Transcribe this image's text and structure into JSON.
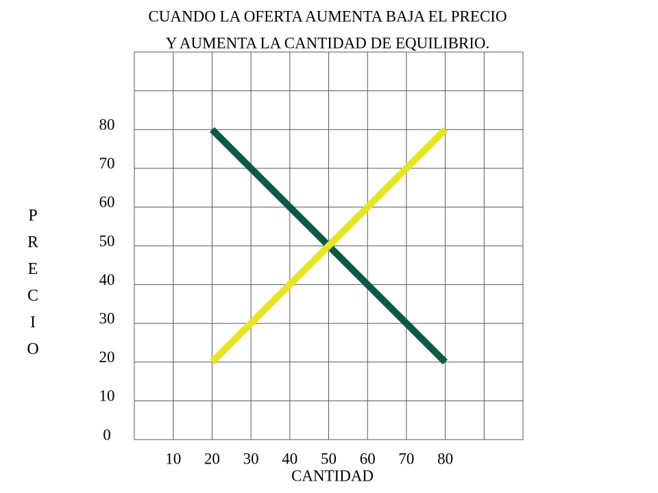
{
  "chart_data": {
    "type": "line",
    "title": [
      "CUANDO LA OFERTA AUMENTA BAJA EL PRECIO",
      "Y AUMENTA LA CANTIDAD DE EQUILIBRIO."
    ],
    "xlabel": "CANTIDAD",
    "ylabel": "PRECIO",
    "series": [
      {
        "color": "#0b5a48",
        "x": [
          20,
          80
        ],
        "values": [
          80,
          20
        ]
      },
      {
        "color": "#e6e61e",
        "x": [
          20,
          80
        ],
        "values": [
          20,
          80
        ]
      }
    ],
    "xlim": [
      0,
      100
    ],
    "ylim": [
      0,
      100
    ],
    "xticks": [
      10,
      20,
      30,
      40,
      50,
      60,
      70,
      80
    ],
    "yticks": [
      0,
      10,
      20,
      30,
      40,
      50,
      60,
      70,
      80
    ],
    "grid": true
  }
}
